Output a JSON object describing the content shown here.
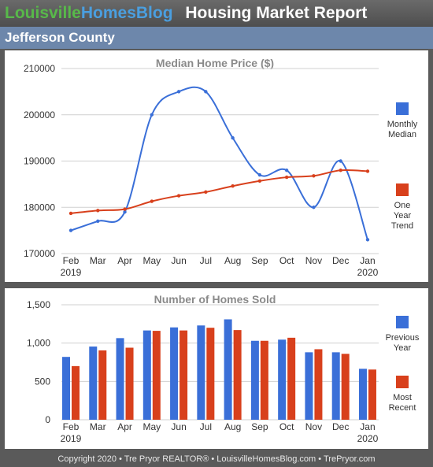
{
  "header": {
    "brand_part1": "Louisville",
    "brand_part2": "HomesBlog",
    "report_title": "Housing Market Report"
  },
  "county": "Jefferson County",
  "footer": "Copyright 2020 • Tre Pryor REALTOR® • LouisvilleHomesBlog.com • TrePryor.com",
  "colors": {
    "blue": "#3a6fd8",
    "red": "#d8401c",
    "title_gray": "#8a8a8a",
    "county_bar": "#6d87ab"
  },
  "chart_data": [
    {
      "type": "line",
      "title": "Median Home Price ($)",
      "categories": [
        "Feb",
        "Mar",
        "Apr",
        "May",
        "Jun",
        "Jul",
        "Aug",
        "Sep",
        "Oct",
        "Nov",
        "Dec",
        "Jan"
      ],
      "year_labels": {
        "first": "2019",
        "last": "2020"
      },
      "series": [
        {
          "name": "Monthly Median",
          "color": "#3a6fd8",
          "values": [
            175000,
            177000,
            179000,
            200000,
            205000,
            205000,
            195000,
            187000,
            188000,
            180000,
            190000,
            173000
          ]
        },
        {
          "name": "One Year Trend",
          "color": "#d8401c",
          "values": [
            178700,
            179300,
            179600,
            181300,
            182500,
            183300,
            184600,
            185700,
            186500,
            186800,
            188000,
            187800
          ]
        }
      ],
      "legend": [
        {
          "label_lines": [
            "Monthly",
            "Median"
          ],
          "color": "#3a6fd8"
        },
        {
          "label_lines": [
            "One",
            "Year",
            "Trend"
          ],
          "color": "#d8401c"
        }
      ],
      "y_ticks": [
        "170000",
        "180000",
        "190000",
        "200000",
        "210000"
      ],
      "ylim": [
        170000,
        210000
      ],
      "legend_position": "right",
      "grid": true
    },
    {
      "type": "bar",
      "title": "Number of Homes Sold",
      "categories": [
        "Feb",
        "Mar",
        "Apr",
        "May",
        "Jun",
        "Jul",
        "Aug",
        "Sep",
        "Oct",
        "Nov",
        "Dec",
        "Jan"
      ],
      "year_labels": {
        "first": "2019",
        "last": "2020"
      },
      "series": [
        {
          "name": "Previous Year",
          "color": "#3a6fd8",
          "values": [
            820,
            955,
            1065,
            1165,
            1205,
            1230,
            1310,
            1030,
            1045,
            880,
            880,
            665
          ]
        },
        {
          "name": "Most Recent",
          "color": "#d8401c",
          "values": [
            700,
            905,
            940,
            1160,
            1165,
            1200,
            1170,
            1030,
            1070,
            920,
            860,
            655
          ]
        }
      ],
      "legend": [
        {
          "label_lines": [
            "Previous",
            "Year"
          ],
          "color": "#3a6fd8"
        },
        {
          "label_lines": [
            "Most",
            "Recent"
          ],
          "color": "#d8401c"
        }
      ],
      "y_ticks": [
        "0",
        "500",
        "1,000",
        "1,500"
      ],
      "ylim": [
        0,
        1500
      ],
      "legend_position": "right",
      "grid": true
    }
  ]
}
